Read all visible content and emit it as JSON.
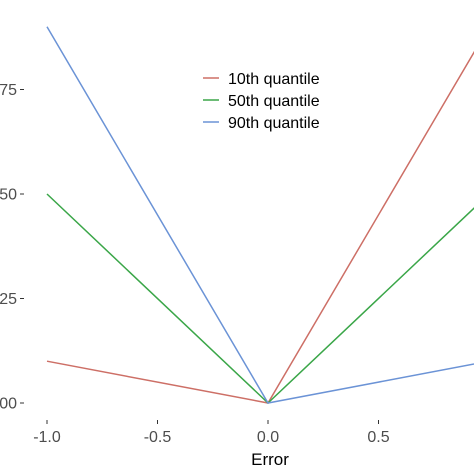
{
  "chart_data": {
    "type": "line",
    "title": "",
    "xlabel": "Error",
    "ylabel": "",
    "xlim": [
      -1.0,
      1.0
    ],
    "ylim": [
      0.0,
      0.9
    ],
    "grid": false,
    "legend_position": "top-center",
    "x_ticks": [
      -1.0,
      -0.5,
      0.0,
      0.5
    ],
    "x_tick_labels": [
      "-1.0",
      "-0.5",
      "0.0",
      "0.5"
    ],
    "y_ticks": [
      0.0,
      0.25,
      0.5,
      0.75
    ],
    "y_tick_labels": [
      "00",
      "25",
      "50",
      "75"
    ],
    "series": [
      {
        "name": "10th quantile",
        "color": "#cd6f66",
        "x": [
          -1.0,
          0.0,
          1.0
        ],
        "y": [
          0.1,
          0.0,
          0.9
        ]
      },
      {
        "name": "50th quantile",
        "color": "#3aa648",
        "x": [
          -1.0,
          0.0,
          1.0
        ],
        "y": [
          0.5,
          0.0,
          0.5
        ]
      },
      {
        "name": "90th quantile",
        "color": "#6b93d6",
        "x": [
          -1.0,
          0.0,
          1.0
        ],
        "y": [
          0.9,
          0.0,
          0.1
        ]
      }
    ]
  }
}
